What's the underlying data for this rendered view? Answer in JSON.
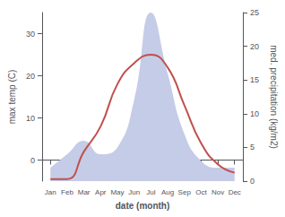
{
  "chart_data": {
    "type": "line",
    "categories": [
      "Jan",
      "Feb",
      "Mar",
      "Apr",
      "May",
      "Jun",
      "Jul",
      "Aug",
      "Sep",
      "Oct",
      "Nov",
      "Dec"
    ],
    "xlabel": "date (month)",
    "ylabel": "max temp (C)",
    "y2label": "med. precipitation (kg/m2)",
    "series": [
      {
        "type": "area",
        "axis": "y2",
        "color": "#c5cce8",
        "values": [
          2,
          4,
          6,
          4,
          5,
          12,
          25,
          16,
          7,
          3,
          2,
          2
        ]
      },
      {
        "type": "line",
        "color": "#c0504d",
        "values": [
          -4.5,
          -4.5,
          2,
          8,
          18,
          23,
          25,
          22,
          13,
          4,
          -1,
          -3
        ]
      }
    ],
    "ylim": [
      -5,
      35
    ],
    "yticks": [
      0,
      10,
      20,
      30
    ],
    "y2lim": [
      0,
      25
    ],
    "y2ticks": [
      0,
      5,
      10,
      15,
      20,
      25
    ],
    "grid": false
  }
}
